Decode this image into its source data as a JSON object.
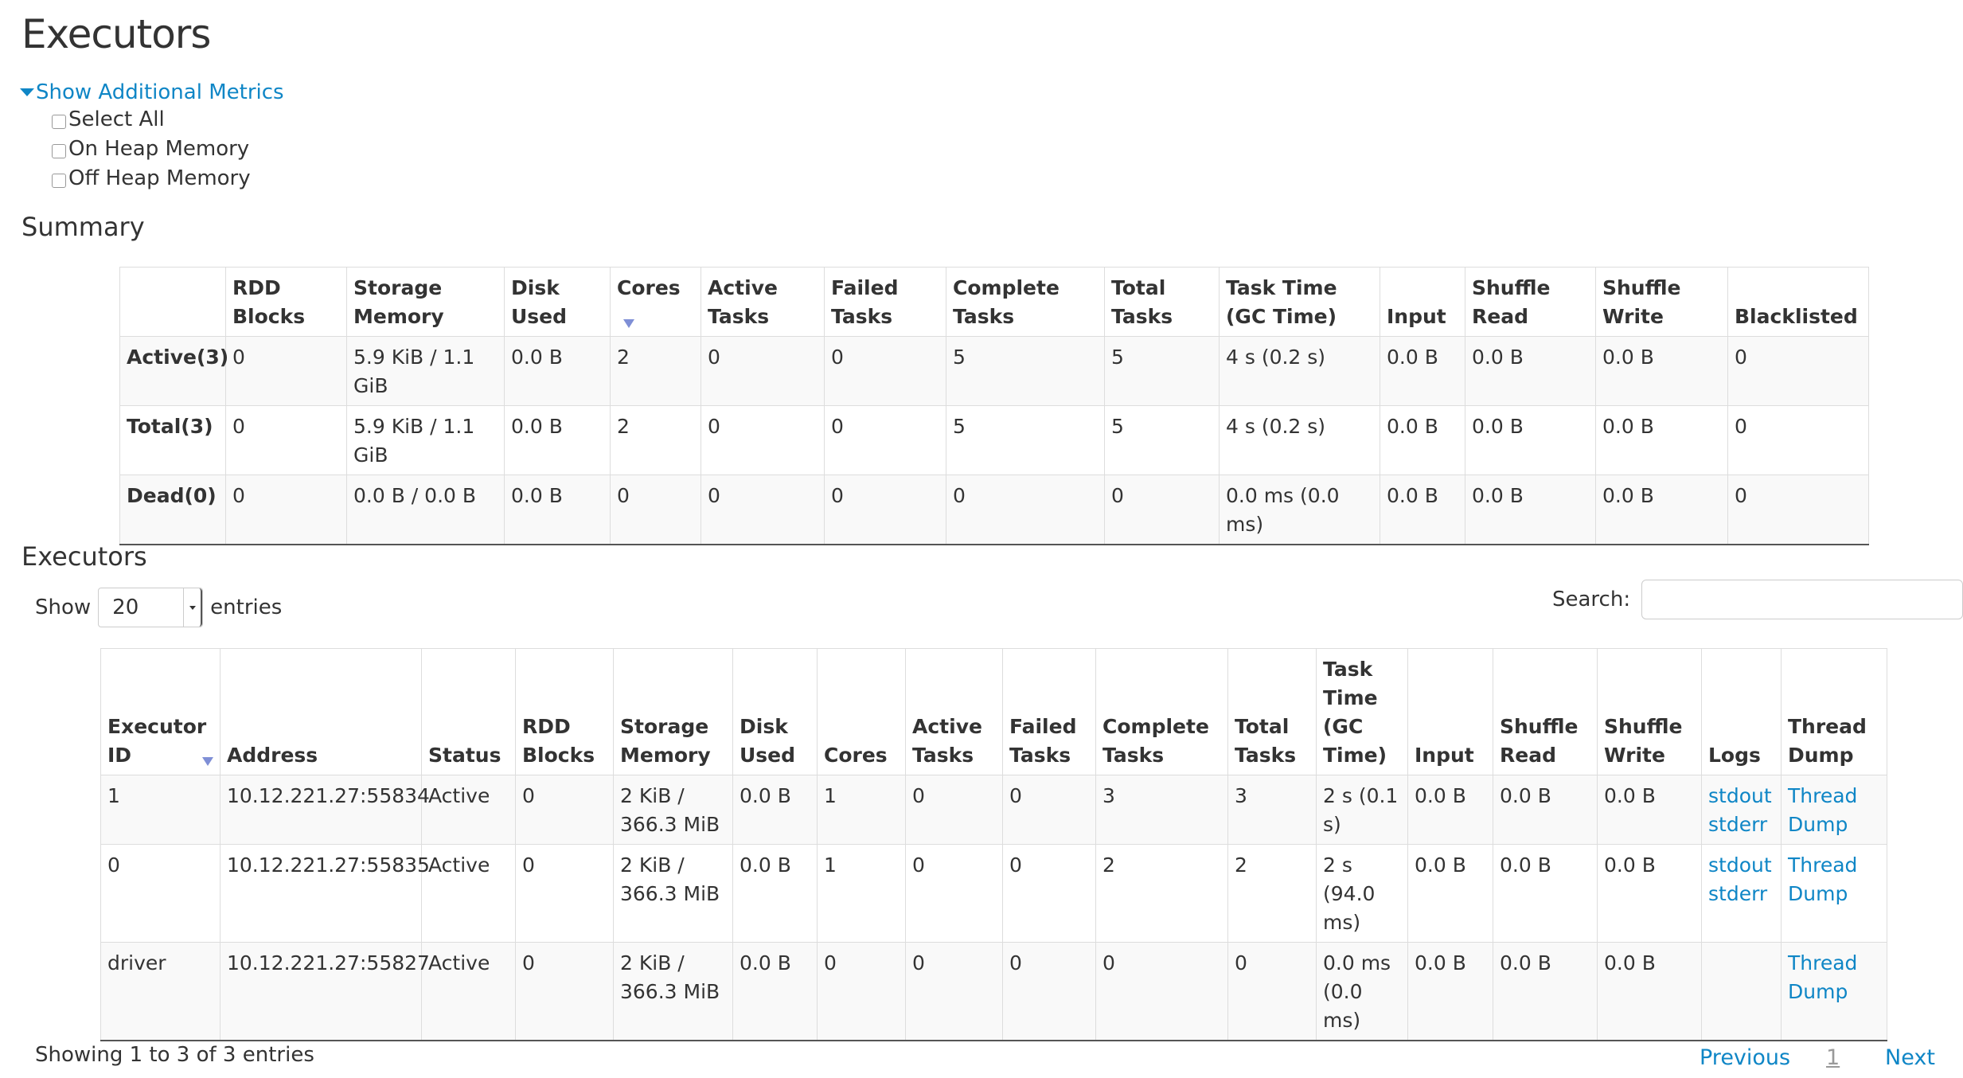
{
  "page_title": "Executors",
  "metrics": {
    "toggle_label": "Show Additional Metrics",
    "options": [
      "Select All",
      "On Heap Memory",
      "Off Heap Memory"
    ]
  },
  "summary": {
    "heading": "Summary",
    "headers": [
      "",
      "RDD Blocks",
      "Storage Memory",
      "Disk Used",
      "Cores",
      "Active Tasks",
      "Failed Tasks",
      "Complete Tasks",
      "Total Tasks",
      "Task Time (GC Time)",
      "Input",
      "Shuffle Read",
      "Shuffle Write",
      "Blacklisted"
    ],
    "rows": [
      [
        "Active(3)",
        "0",
        "5.9 KiB / 1.1 GiB",
        "0.0 B",
        "2",
        "0",
        "0",
        "5",
        "5",
        "4 s (0.2 s)",
        "0.0 B",
        "0.0 B",
        "0.0 B",
        "0"
      ],
      [
        "Total(3)",
        "0",
        "5.9 KiB / 1.1 GiB",
        "0.0 B",
        "2",
        "0",
        "0",
        "5",
        "5",
        "4 s (0.2 s)",
        "0.0 B",
        "0.0 B",
        "0.0 B",
        "0"
      ],
      [
        "Dead(0)",
        "0",
        "0.0 B / 0.0 B",
        "0.0 B",
        "0",
        "0",
        "0",
        "0",
        "0",
        "0.0 ms (0.0 ms)",
        "0.0 B",
        "0.0 B",
        "0.0 B",
        "0"
      ]
    ]
  },
  "executors": {
    "heading": "Executors",
    "show_label": "Show",
    "page_size": "20",
    "entries_label": "entries",
    "search_label": "Search:",
    "search_value": "",
    "headers": [
      "Executor ID",
      "Address",
      "Status",
      "RDD Blocks",
      "Storage Memory",
      "Disk Used",
      "Cores",
      "Active Tasks",
      "Failed Tasks",
      "Complete Tasks",
      "Total Tasks",
      "Task Time (GC Time)",
      "Input",
      "Shuffle Read",
      "Shuffle Write",
      "Logs",
      "Thread Dump"
    ],
    "rows": [
      {
        "cells": [
          "1",
          "10.12.221.27:55834",
          "Active",
          "0",
          "2 KiB / 366.3 MiB",
          "0.0 B",
          "1",
          "0",
          "0",
          "3",
          "3",
          "2 s (0.1 s)",
          "0.0 B",
          "0.0 B",
          "0.0 B"
        ],
        "logs": [
          "stdout",
          "stderr"
        ],
        "thread_dump": "Thread Dump"
      },
      {
        "cells": [
          "0",
          "10.12.221.27:55835",
          "Active",
          "0",
          "2 KiB / 366.3 MiB",
          "0.0 B",
          "1",
          "0",
          "0",
          "2",
          "2",
          "2 s (94.0 ms)",
          "0.0 B",
          "0.0 B",
          "0.0 B"
        ],
        "logs": [
          "stdout",
          "stderr"
        ],
        "thread_dump": "Thread Dump"
      },
      {
        "cells": [
          "driver",
          "10.12.221.27:55827",
          "Active",
          "0",
          "2 KiB / 366.3 MiB",
          "0.0 B",
          "0",
          "0",
          "0",
          "0",
          "0",
          "0.0 ms (0.0 ms)",
          "0.0 B",
          "0.0 B",
          "0.0 B"
        ],
        "logs": [],
        "thread_dump": "Thread Dump"
      }
    ],
    "info": "Showing 1 to 3 of 3 entries",
    "pagination": {
      "previous": "Previous",
      "current": "1",
      "next": "Next"
    }
  },
  "colors": {
    "link": "#0f86c6",
    "sort_indicator": "#7f8fd6",
    "stripe": "#f9f9f9"
  }
}
